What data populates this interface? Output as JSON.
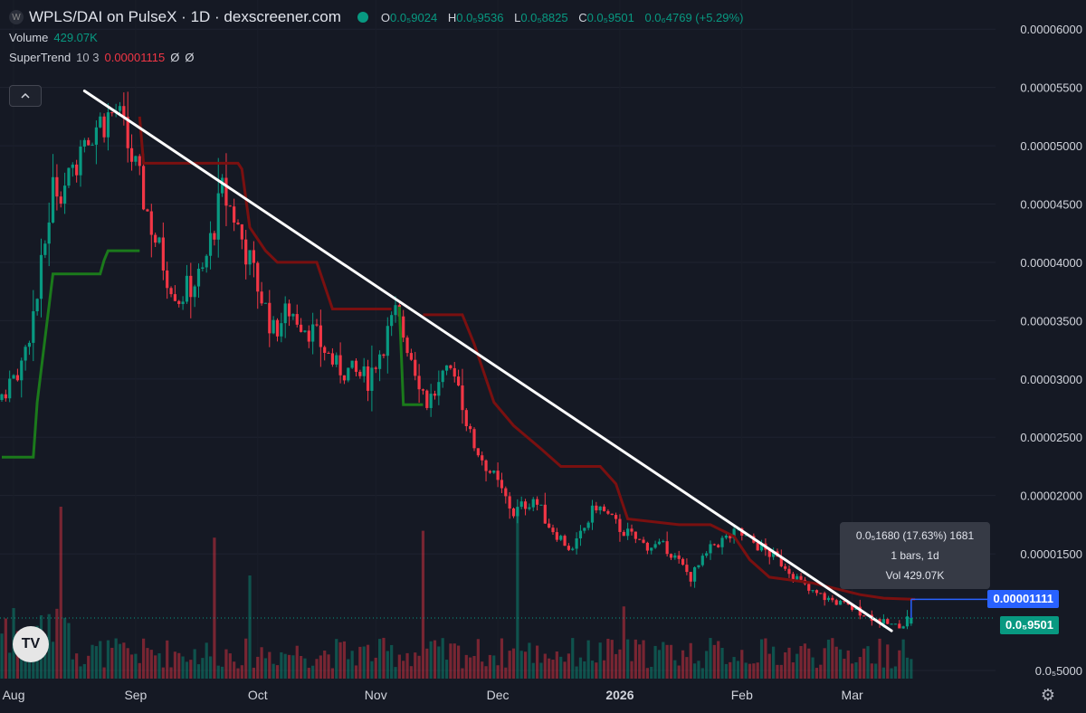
{
  "header": {
    "logo_glyph": "W",
    "title": "WPLS/DAI on PulseX · 1D · dexscreener.com",
    "ohlc": [
      {
        "key": "O",
        "value": "0.0₅9024"
      },
      {
        "key": "H",
        "value": "0.0₅9536"
      },
      {
        "key": "L",
        "value": "0.0₅8825"
      },
      {
        "key": "C",
        "value": "0.0₅9501"
      }
    ],
    "change": "0.0₆4769 (+5.29%)"
  },
  "volume_legend": {
    "label": "Volume",
    "value": "429.07K"
  },
  "supertrend_legend": {
    "label": "SuperTrend",
    "params": "10 3",
    "value": "0.00001115",
    "extra1": "Ø",
    "extra2": "Ø"
  },
  "collapse_icon": "chevron-up-icon",
  "tooltip": {
    "line1": "0.0₅1680 (17.63%) 1681",
    "line2": "1 bars, 1d",
    "line3": "Vol 429.07K"
  },
  "price_tags": {
    "supertrend": "0.00001111",
    "last": "0.0₅9501"
  },
  "watermark": "TV",
  "settings_icon": "gear-icon",
  "colors": {
    "background": "#151924",
    "up": "#089981",
    "down": "#f23645",
    "supertrend_up": "#1b7a1b",
    "supertrend_down": "#7a1010",
    "trendline": "#ffffff",
    "ruler": "#2962ff"
  },
  "chart_data": {
    "type": "candlestick",
    "title": "WPLS/DAI on PulseX · 1D",
    "y_tick_labels": [
      "0.00006000",
      "0.00005500",
      "0.00005000",
      "0.00004500",
      "0.00004000",
      "0.00003500",
      "0.00003000",
      "0.00002500",
      "0.00002000",
      "0.00001500",
      "0.0₅5000"
    ],
    "y_tick_values": [
      6e-05,
      5.5e-05,
      5e-05,
      4.5e-05,
      4e-05,
      3.5e-05,
      3e-05,
      2.5e-05,
      2e-05,
      1.5e-05,
      5e-06
    ],
    "ylim": [
      4.3e-06,
      6.25e-05
    ],
    "x_tick_labels": [
      "Aug",
      "Sep",
      "Oct",
      "Nov",
      "Dec",
      "2026",
      "Feb",
      "Mar"
    ],
    "x_tick_days": [
      3,
      34,
      65,
      95,
      126,
      157,
      188,
      216
    ],
    "total_days": 232,
    "price_path": [
      [
        0,
        2.82e-05
      ],
      [
        6,
        3.12e-05
      ],
      [
        10,
        3.7e-05
      ],
      [
        14,
        4.65e-05
      ],
      [
        18,
        4.68e-05
      ],
      [
        22,
        5.1e-05
      ],
      [
        26,
        5.2e-05
      ],
      [
        30,
        5.3e-05
      ],
      [
        34,
        4.9e-05
      ],
      [
        40,
        4.2e-05
      ],
      [
        43,
        3.9e-05
      ],
      [
        46,
        3.7e-05
      ],
      [
        52,
        3.9e-05
      ],
      [
        57,
        4.6e-05
      ],
      [
        60,
        4.4e-05
      ],
      [
        65,
        3.9e-05
      ],
      [
        70,
        3.4e-05
      ],
      [
        74,
        3.6e-05
      ],
      [
        80,
        3.4e-05
      ],
      [
        86,
        3.1e-05
      ],
      [
        94,
        3e-05
      ],
      [
        101,
        3.55e-05
      ],
      [
        104,
        3.3e-05
      ],
      [
        109,
        2.8e-05
      ],
      [
        116,
        3.1e-05
      ],
      [
        120,
        2.5e-05
      ],
      [
        126,
        2.15e-05
      ],
      [
        131,
        1.85e-05
      ],
      [
        136,
        1.98e-05
      ],
      [
        140,
        1.75e-05
      ],
      [
        146,
        1.52e-05
      ],
      [
        152,
        1.92e-05
      ],
      [
        158,
        1.72e-05
      ],
      [
        164,
        1.58e-05
      ],
      [
        170,
        1.55e-05
      ],
      [
        176,
        1.3e-05
      ],
      [
        182,
        1.58e-05
      ],
      [
        188,
        1.68e-05
      ],
      [
        194,
        1.55e-05
      ],
      [
        200,
        1.4e-05
      ],
      [
        206,
        1.18e-05
      ],
      [
        212,
        1.1e-05
      ],
      [
        218,
        1.02e-05
      ],
      [
        224,
        9.2e-06
      ],
      [
        228,
        8.8e-06
      ],
      [
        230,
        9e-06
      ],
      [
        231,
        9.5e-06
      ]
    ],
    "last_candle": {
      "open": 9.024e-06,
      "high": 9.536e-06,
      "low": 8.825e-06,
      "close": 9.501e-06
    },
    "supertrend": {
      "params": [
        10,
        3
      ],
      "up_segments": [
        [
          [
            0,
            2.33e-05
          ],
          [
            8,
            2.33e-05
          ],
          [
            9,
            2.8e-05
          ],
          [
            13,
            3.9e-05
          ],
          [
            25,
            3.9e-05
          ],
          [
            26,
            4.02e-05
          ],
          [
            27,
            4.1e-05
          ],
          [
            35,
            4.1e-05
          ]
        ],
        [
          [
            101,
            3.62e-05
          ],
          [
            102,
            2.78e-05
          ],
          [
            107,
            2.78e-05
          ]
        ]
      ],
      "down_segments": [
        [
          [
            35,
            5.25e-05
          ],
          [
            36,
            4.85e-05
          ],
          [
            48,
            4.85e-05
          ],
          [
            49,
            4.85e-05
          ],
          [
            52,
            4.85e-05
          ],
          [
            55,
            4.85e-05
          ],
          [
            60,
            4.85e-05
          ],
          [
            61,
            4.8e-05
          ],
          [
            63,
            4.3e-05
          ],
          [
            67,
            4.1e-05
          ],
          [
            70,
            4e-05
          ],
          [
            80,
            4e-05
          ],
          [
            84,
            3.6e-05
          ],
          [
            95,
            3.6e-05
          ],
          [
            99,
            3.6e-05
          ]
        ],
        [
          [
            107,
            3.55e-05
          ],
          [
            117,
            3.55e-05
          ],
          [
            120,
            3.3e-05
          ],
          [
            125,
            2.8e-05
          ],
          [
            130,
            2.6e-05
          ],
          [
            137,
            2.4e-05
          ],
          [
            142,
            2.25e-05
          ],
          [
            152,
            2.25e-05
          ],
          [
            156,
            2.1e-05
          ],
          [
            159,
            1.8e-05
          ],
          [
            172,
            1.75e-05
          ],
          [
            180,
            1.75e-05
          ],
          [
            186,
            1.65e-05
          ],
          [
            190,
            1.45e-05
          ],
          [
            195,
            1.3e-05
          ],
          [
            206,
            1.25e-05
          ],
          [
            218,
            1.15e-05
          ],
          [
            224,
            1.12e-05
          ],
          [
            232,
            1.11e-05
          ]
        ]
      ]
    },
    "trendline": {
      "from": [
        21,
        5.47e-05
      ],
      "to": [
        226,
        8.4e-06
      ]
    },
    "volume_axis_max": 1000,
    "volume_seed": 7,
    "volume_spikes": [
      [
        8,
        300
      ],
      [
        15,
        1000
      ],
      [
        54,
        820
      ],
      [
        63,
        600
      ],
      [
        107,
        860
      ],
      [
        131,
        980
      ],
      [
        158,
        420
      ]
    ]
  }
}
